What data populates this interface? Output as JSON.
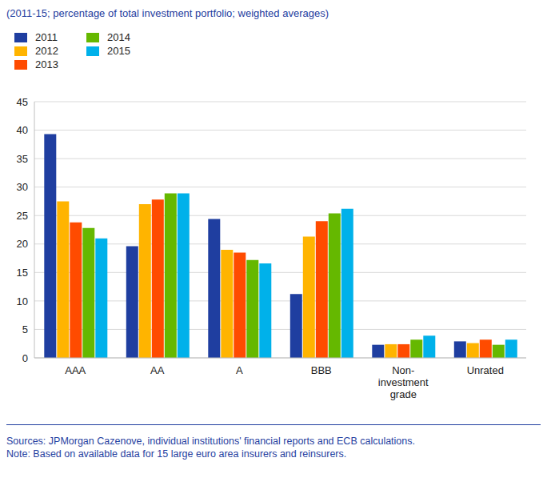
{
  "chart_data": {
    "type": "bar",
    "subtitle": "(2011-15; percentage of total investment portfolio; weighted averages)",
    "categories": [
      "AAA",
      "AA",
      "A",
      "BBB",
      "Non-investment grade",
      "Unrated"
    ],
    "series": [
      {
        "name": "2011",
        "color": "#1f3ea0",
        "values": [
          39.3,
          19.6,
          24.4,
          11.2,
          2.3,
          2.9
        ]
      },
      {
        "name": "2012",
        "color": "#ffb400",
        "values": [
          27.5,
          27.0,
          19.0,
          21.3,
          2.4,
          2.6
        ]
      },
      {
        "name": "2013",
        "color": "#ff4b00",
        "values": [
          23.8,
          27.8,
          18.5,
          24.0,
          2.4,
          3.2
        ]
      },
      {
        "name": "2014",
        "color": "#65b800",
        "values": [
          22.8,
          28.9,
          17.2,
          25.4,
          3.2,
          2.3
        ]
      },
      {
        "name": "2015",
        "color": "#00b1ea",
        "values": [
          21.0,
          28.9,
          16.6,
          26.2,
          3.9,
          3.2
        ]
      }
    ],
    "ylim": [
      0,
      45
    ],
    "yticks": [
      0,
      5,
      10,
      15,
      20,
      25,
      30,
      35,
      40,
      45
    ],
    "grid": true,
    "legend": "top-left",
    "source": "Sources: JPMorgan Cazenove, individual institutions' financial reports and ECB calculations.",
    "note": "Note: Based on available data for 15 large euro area insurers and reinsurers."
  }
}
